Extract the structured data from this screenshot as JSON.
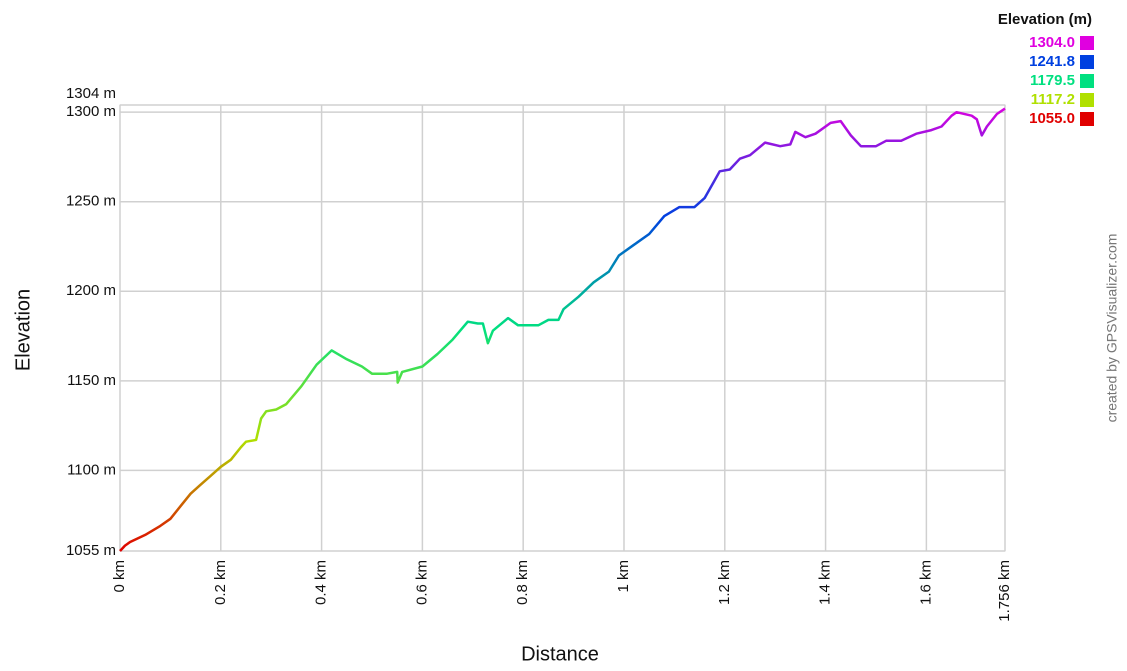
{
  "chart_data": {
    "type": "line",
    "x_label": "Distance",
    "y_label": "Elevation",
    "attribution": "created by GPSVisualizer.com",
    "legend_title": "Elevation (m)",
    "legend": [
      {
        "value": 1304.0,
        "label": "1304.0",
        "color": "#e000e0"
      },
      {
        "value": 1241.8,
        "label": "1241.8",
        "color": "#0040e0"
      },
      {
        "value": 1179.5,
        "label": "1179.5",
        "color": "#00e080"
      },
      {
        "value": 1117.2,
        "label": "1117.2",
        "color": "#b0e000"
      },
      {
        "value": 1055.0,
        "label": "1055.0",
        "color": "#e00000"
      }
    ],
    "grid": true,
    "xlim": [
      0,
      1.756
    ],
    "ylim": [
      1055,
      1304
    ],
    "xticks": [
      {
        "value": 0,
        "label": "0 km"
      },
      {
        "value": 0.2,
        "label": "0.2 km"
      },
      {
        "value": 0.4,
        "label": "0.4 km"
      },
      {
        "value": 0.6,
        "label": "0.6 km"
      },
      {
        "value": 0.8,
        "label": "0.8 km"
      },
      {
        "value": 1,
        "label": "1 km"
      },
      {
        "value": 1.2,
        "label": "1.2 km"
      },
      {
        "value": 1.4,
        "label": "1.4 km"
      },
      {
        "value": 1.6,
        "label": "1.6 km"
      },
      {
        "value": 1.756,
        "label": "1.756 km"
      }
    ],
    "yticks": [
      {
        "value": 1055,
        "label": "1055 m"
      },
      {
        "value": 1100,
        "label": "1100 m"
      },
      {
        "value": 1150,
        "label": "1150 m"
      },
      {
        "value": 1200,
        "label": "1200 m"
      },
      {
        "value": 1250,
        "label": "1250 m"
      },
      {
        "value": 1300,
        "label": "1300 m"
      },
      {
        "value": 1304,
        "label": "1304 m"
      }
    ],
    "x": [
      0,
      0.01,
      0.02,
      0.05,
      0.08,
      0.1,
      0.12,
      0.14,
      0.16,
      0.18,
      0.2,
      0.22,
      0.24,
      0.25,
      0.27,
      0.28,
      0.29,
      0.31,
      0.33,
      0.36,
      0.39,
      0.42,
      0.45,
      0.48,
      0.5,
      0.53,
      0.55,
      0.551,
      0.56,
      0.6,
      0.63,
      0.66,
      0.69,
      0.71,
      0.72,
      0.73,
      0.74,
      0.77,
      0.79,
      0.83,
      0.85,
      0.87,
      0.88,
      0.91,
      0.94,
      0.97,
      0.99,
      1.02,
      1.05,
      1.08,
      1.11,
      1.14,
      1.16,
      1.18,
      1.19,
      1.21,
      1.23,
      1.25,
      1.28,
      1.31,
      1.33,
      1.34,
      1.36,
      1.38,
      1.41,
      1.43,
      1.45,
      1.47,
      1.5,
      1.52,
      1.55,
      1.58,
      1.61,
      1.63,
      1.65,
      1.66,
      1.69,
      1.7,
      1.71,
      1.72,
      1.74,
      1.756
    ],
    "values": [
      1055,
      1058,
      1060,
      1064,
      1069,
      1073,
      1080,
      1087,
      1092,
      1097,
      1102,
      1106,
      1113,
      1116,
      1117,
      1129,
      1133,
      1134,
      1137,
      1147,
      1159,
      1167,
      1162,
      1158,
      1154,
      1154,
      1155,
      1149,
      1155,
      1158,
      1165,
      1173,
      1183,
      1182,
      1182,
      1171,
      1178,
      1185,
      1181,
      1181,
      1184,
      1184,
      1190,
      1197,
      1205,
      1211,
      1220,
      1226,
      1232,
      1242,
      1247,
      1247,
      1252,
      1262,
      1267,
      1268,
      1274,
      1276,
      1283,
      1281,
      1282,
      1289,
      1286,
      1288,
      1294,
      1295,
      1287,
      1281,
      1281,
      1284,
      1284,
      1288,
      1290,
      1292,
      1298,
      1300,
      1298,
      1296,
      1287,
      1292,
      1299,
      1302
    ]
  }
}
